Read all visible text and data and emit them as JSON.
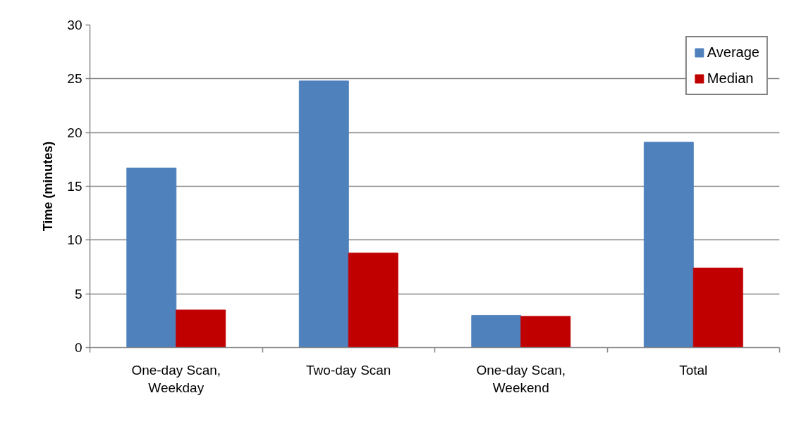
{
  "chart_data": {
    "type": "bar",
    "ylabel": "Time (minutes)",
    "categories": [
      "One-day Scan, Weekday",
      "Two-day Scan",
      "One-day Scan, Weekend",
      "Total"
    ],
    "series": [
      {
        "name": "Average",
        "color": "#4f81bd",
        "values": [
          16.7,
          24.8,
          3.0,
          19.1
        ]
      },
      {
        "name": "Median",
        "color": "#c00000",
        "values": [
          3.5,
          8.8,
          2.9,
          7.4
        ]
      }
    ],
    "ylim": [
      0,
      30
    ],
    "yticks": [
      0,
      5,
      10,
      15,
      20,
      25,
      30
    ],
    "grid": "y",
    "legend": "top right"
  }
}
